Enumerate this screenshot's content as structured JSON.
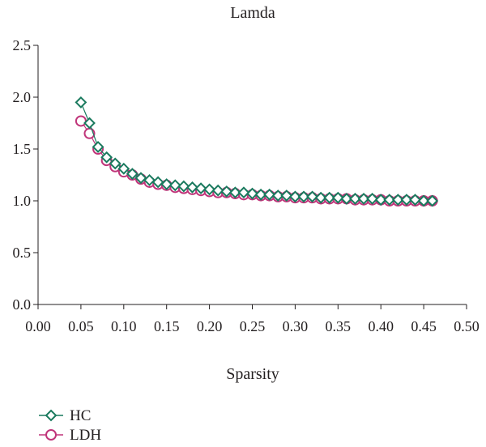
{
  "chart_data": {
    "type": "line",
    "title": "Lamda",
    "xlabel": "Sparsity",
    "ylabel": "",
    "xlim": [
      0.0,
      0.5
    ],
    "ylim": [
      0.0,
      2.5
    ],
    "xticks": [
      "0.00",
      "0.05",
      "0.10",
      "0.15",
      "0.20",
      "0.25",
      "0.30",
      "0.35",
      "0.40",
      "0.45",
      "0.50"
    ],
    "yticks": [
      "0.0",
      "0.5",
      "1.0",
      "1.5",
      "2.0",
      "2.5"
    ],
    "grid": false,
    "legend_position": "bottom-left",
    "x": [
      0.05,
      0.06,
      0.07,
      0.08,
      0.09,
      0.1,
      0.11,
      0.12,
      0.13,
      0.14,
      0.15,
      0.16,
      0.17,
      0.18,
      0.19,
      0.2,
      0.21,
      0.22,
      0.23,
      0.24,
      0.25,
      0.26,
      0.27,
      0.28,
      0.29,
      0.3,
      0.31,
      0.32,
      0.33,
      0.34,
      0.35,
      0.36,
      0.37,
      0.38,
      0.39,
      0.4,
      0.41,
      0.42,
      0.43,
      0.44,
      0.45,
      0.46
    ],
    "series": [
      {
        "name": "HC",
        "color": "#1a7a5e",
        "marker": "diamond",
        "values": [
          1.95,
          1.75,
          1.52,
          1.42,
          1.36,
          1.31,
          1.26,
          1.22,
          1.2,
          1.18,
          1.16,
          1.15,
          1.14,
          1.13,
          1.12,
          1.11,
          1.1,
          1.09,
          1.08,
          1.08,
          1.07,
          1.06,
          1.06,
          1.05,
          1.05,
          1.04,
          1.04,
          1.04,
          1.03,
          1.03,
          1.03,
          1.02,
          1.02,
          1.02,
          1.02,
          1.01,
          1.01,
          1.01,
          1.01,
          1.01,
          1.0,
          1.0
        ]
      },
      {
        "name": "LDH",
        "color": "#c0357a",
        "marker": "circle",
        "values": [
          1.77,
          1.65,
          1.5,
          1.39,
          1.33,
          1.28,
          1.25,
          1.21,
          1.18,
          1.16,
          1.15,
          1.13,
          1.12,
          1.11,
          1.1,
          1.09,
          1.08,
          1.08,
          1.07,
          1.06,
          1.06,
          1.05,
          1.05,
          1.04,
          1.04,
          1.03,
          1.03,
          1.03,
          1.02,
          1.02,
          1.02,
          1.02,
          1.01,
          1.01,
          1.01,
          1.01,
          1.0,
          1.0,
          1.0,
          1.0,
          1.0,
          1.0
        ]
      }
    ]
  }
}
